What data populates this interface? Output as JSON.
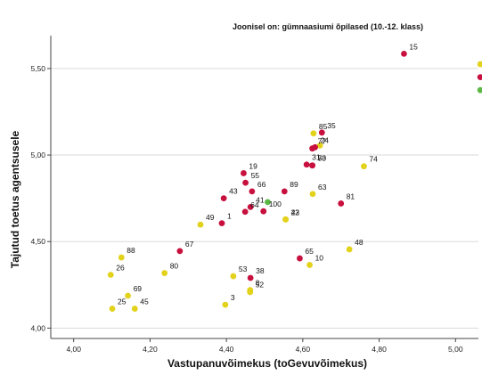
{
  "chart_data": {
    "type": "scatter",
    "title": "Joonisel on: gümnaasiumi õpilased (10.-12. klass)",
    "xlabel": "Vastupanuvõimekus (toGevuvõimekus)",
    "ylabel": "Tajutud toetus agentsusele",
    "xlim": [
      3.94,
      5.06
    ],
    "ylim": [
      3.94,
      5.69
    ],
    "x_ticks": [
      "4,00",
      "4,20",
      "4,40",
      "4,60",
      "4,80",
      "5,00"
    ],
    "x_tick_values": [
      4.0,
      4.2,
      4.4,
      4.6,
      4.8,
      5.0
    ],
    "y_ticks": [
      "4,00",
      "4,50",
      "5,00",
      "5,50"
    ],
    "y_tick_values": [
      4.0,
      4.5,
      5.0,
      5.5
    ],
    "grid": "horizontal",
    "colors": {
      "crimson": "#c8103e",
      "yellow": "#e3d21c",
      "green": "#5cb845"
    },
    "points": [
      {
        "label": "15",
        "x": 4.865,
        "y": 5.585,
        "color": "crimson"
      },
      {
        "label": "85",
        "x": 4.628,
        "y": 5.125,
        "color": "yellow"
      },
      {
        "label": "35",
        "x": 4.65,
        "y": 5.13,
        "color": "crimson"
      },
      {
        "label": "77",
        "x": 4.625,
        "y": 5.038,
        "color": "crimson"
      },
      {
        "label": "24",
        "x": 4.632,
        "y": 5.045,
        "color": "crimson"
      },
      {
        "label": "",
        "x": 4.645,
        "y": 5.055,
        "color": "yellow"
      },
      {
        "label": "31",
        "x": 4.61,
        "y": 4.945,
        "color": "crimson"
      },
      {
        "label": "50",
        "x": 4.625,
        "y": 4.94,
        "color": "crimson"
      },
      {
        "label": "73",
        "x": 4.625,
        "y": 4.94,
        "color": "crimson"
      },
      {
        "label": "74",
        "x": 4.76,
        "y": 4.935,
        "color": "yellow"
      },
      {
        "label": "19",
        "x": 4.445,
        "y": 4.895,
        "color": "crimson"
      },
      {
        "label": "55",
        "x": 4.45,
        "y": 4.84,
        "color": "crimson"
      },
      {
        "label": "43",
        "x": 4.393,
        "y": 4.75,
        "color": "crimson"
      },
      {
        "label": "66",
        "x": 4.467,
        "y": 4.79,
        "color": "crimson"
      },
      {
        "label": "89",
        "x": 4.552,
        "y": 4.79,
        "color": "crimson"
      },
      {
        "label": "63",
        "x": 4.626,
        "y": 4.775,
        "color": "yellow"
      },
      {
        "label": "81",
        "x": 4.7,
        "y": 4.72,
        "color": "crimson"
      },
      {
        "label": "41",
        "x": 4.463,
        "y": 4.7,
        "color": "crimson"
      },
      {
        "label": "",
        "x": 4.508,
        "y": 4.728,
        "color": "green"
      },
      {
        "label": "64",
        "x": 4.449,
        "y": 4.672,
        "color": "crimson"
      },
      {
        "label": "100",
        "x": 4.497,
        "y": 4.675,
        "color": "crimson"
      },
      {
        "label": "1",
        "x": 4.388,
        "y": 4.606,
        "color": "crimson"
      },
      {
        "label": "49",
        "x": 4.332,
        "y": 4.598,
        "color": "yellow"
      },
      {
        "label": "23",
        "x": 4.555,
        "y": 4.628,
        "color": "yellow"
      },
      {
        "label": "42",
        "x": 4.555,
        "y": 4.628,
        "color": "yellow"
      },
      {
        "label": "67",
        "x": 4.278,
        "y": 4.445,
        "color": "crimson"
      },
      {
        "label": "88",
        "x": 4.125,
        "y": 4.408,
        "color": "yellow"
      },
      {
        "label": "48",
        "x": 4.722,
        "y": 4.455,
        "color": "yellow"
      },
      {
        "label": "65",
        "x": 4.592,
        "y": 4.403,
        "color": "crimson"
      },
      {
        "label": "10",
        "x": 4.618,
        "y": 4.365,
        "color": "yellow"
      },
      {
        "label": "26",
        "x": 4.097,
        "y": 4.308,
        "color": "yellow"
      },
      {
        "label": "80",
        "x": 4.238,
        "y": 4.318,
        "color": "yellow"
      },
      {
        "label": "53",
        "x": 4.418,
        "y": 4.3,
        "color": "yellow"
      },
      {
        "label": "38",
        "x": 4.463,
        "y": 4.29,
        "color": "crimson"
      },
      {
        "label": "8",
        "x": 4.462,
        "y": 4.22,
        "color": "yellow"
      },
      {
        "label": "",
        "x": 4.462,
        "y": 4.208,
        "color": "yellow"
      },
      {
        "label": "69",
        "x": 4.142,
        "y": 4.187,
        "color": "yellow"
      },
      {
        "label": "52",
        "x": 4.462,
        "y": 4.21,
        "color": "yellow"
      },
      {
        "label": "25",
        "x": 4.101,
        "y": 4.112,
        "color": "yellow"
      },
      {
        "label": "45",
        "x": 4.16,
        "y": 4.112,
        "color": "yellow"
      },
      {
        "label": "3",
        "x": 4.397,
        "y": 4.135,
        "color": "yellow"
      },
      {
        "label": "",
        "x": 5.065,
        "y": 5.525,
        "color": "yellow"
      },
      {
        "label": "",
        "x": 5.065,
        "y": 5.45,
        "color": "crimson"
      },
      {
        "label": "",
        "x": 5.065,
        "y": 5.375,
        "color": "green"
      }
    ]
  }
}
